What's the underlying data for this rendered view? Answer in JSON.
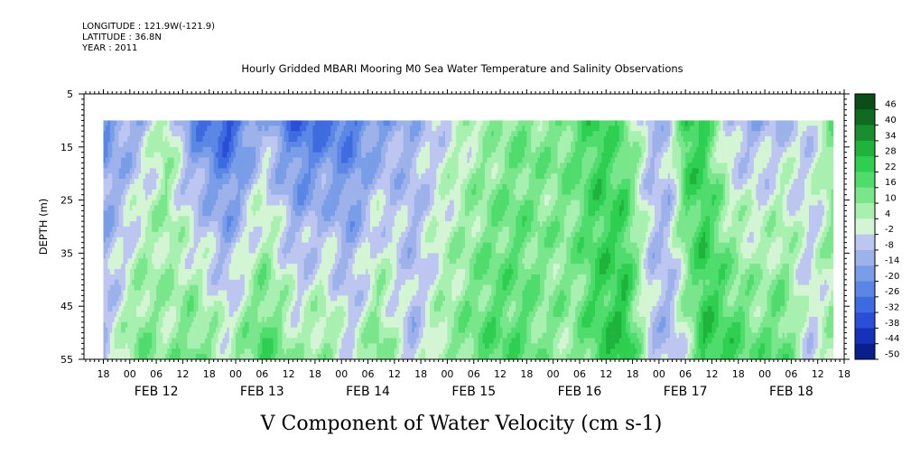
{
  "header": {
    "longitude": "LONGITUDE : 121.9W(-121.9)",
    "latitude": "LATITUDE : 36.8N",
    "year": "YEAR : 2011"
  },
  "chart_data": {
    "type": "heatmap",
    "title": "Hourly Gridded MBARI Mooring M0 Sea Water Temperature and Salinity Observations",
    "xlabel_caption": "V Component of Water Velocity (cm s-1)",
    "ylabel": "DEPTH (m)",
    "ylim": [
      55,
      5
    ],
    "y_ticks": [
      5,
      15,
      25,
      35,
      45,
      55
    ],
    "x_range_hours": [
      0,
      168
    ],
    "x_tick_labels": [
      "00",
      "06",
      "12",
      "18",
      "00",
      "06",
      "12",
      "18",
      "00",
      "06",
      "12",
      "18",
      "00",
      "06",
      "12",
      "18",
      "00",
      "06",
      "12",
      "18",
      "00",
      "06",
      "12",
      "18",
      "00",
      "06",
      "12",
      "18",
      "00",
      "06",
      "12",
      "18"
    ],
    "day_labels": [
      "FEB 12",
      "FEB 13",
      "FEB 14",
      "FEB 15",
      "FEB 16",
      "FEB 17",
      "FEB 18"
    ],
    "data_depth_range": [
      10,
      55
    ],
    "data_time_range_hours": [
      0,
      165.5
    ],
    "colorbar": {
      "levels": [
        "46",
        "40",
        "34",
        "28",
        "22",
        "16",
        "10",
        "4",
        "-2",
        "-8",
        "-14",
        "-20",
        "-26",
        "-32",
        "-38",
        "-44",
        "-50"
      ],
      "min": -50,
      "max": 50,
      "colors": [
        "#0a1f8c",
        "#1632b8",
        "#2a4fd6",
        "#3f6be0",
        "#5a86e6",
        "#7a9de8",
        "#9db1ea",
        "#bcc6f0",
        "#d4f5d4",
        "#a8f0b0",
        "#7ae68c",
        "#4fdc6c",
        "#2ecf50",
        "#1fb33c",
        "#178f2f",
        "#0f6b22",
        "#0a4d18"
      ]
    },
    "series": [
      {
        "hours": [
          0,
          8,
          14,
          20,
          28,
          36,
          44,
          50,
          56,
          62,
          70,
          76,
          82,
          88,
          94,
          100,
          106,
          112,
          118,
          124,
          128,
          132,
          136,
          142,
          148,
          154,
          160,
          165
        ],
        "surface_v": [
          -20,
          -12,
          8,
          -22,
          -34,
          -12,
          -30,
          -28,
          -26,
          -18,
          -10,
          -4,
          2,
          6,
          12,
          10,
          14,
          22,
          12,
          -8,
          -6,
          26,
          20,
          -10,
          -12,
          -8,
          -4,
          10
        ],
        "bottom_v": [
          -6,
          14,
          6,
          16,
          4,
          20,
          6,
          12,
          -2,
          14,
          -8,
          6,
          12,
          18,
          16,
          10,
          8,
          20,
          28,
          -6,
          -10,
          2,
          24,
          22,
          14,
          18,
          -4,
          6
        ]
      }
    ]
  }
}
